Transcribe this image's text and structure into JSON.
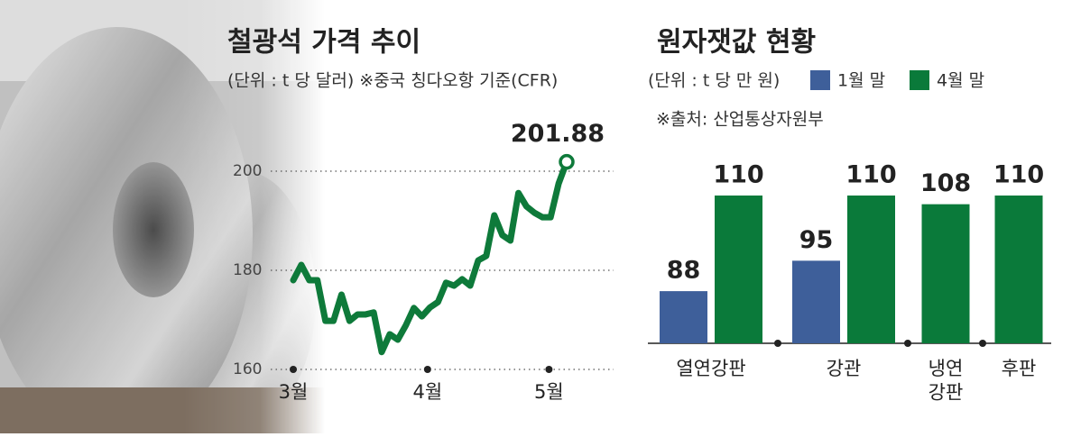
{
  "chart_data": [
    {
      "type": "line",
      "title": "철광석 가격 추이",
      "subtitle": "(단위 : t 당 달러) ※중국 칭다오항 기준(CFR)",
      "series": [
        {
          "name": "철광석",
          "color": "#0e7a3a",
          "values": [
            178,
            181.1,
            178,
            178,
            169.8,
            169.8,
            175.1,
            169.8,
            171.1,
            171.1,
            171.5,
            163.5,
            167.1,
            166,
            168.9,
            172.4,
            170.7,
            172.5,
            173.6,
            177.5,
            176.9,
            178.2,
            176.9,
            182,
            182.9,
            191.1,
            187.1,
            186,
            195.6,
            192.9,
            191.6,
            190.7,
            190.7,
            197.5,
            201.88
          ]
        }
      ],
      "xlim": [
        0,
        34
      ],
      "xticks": [
        {
          "value": 0,
          "label": "3월"
        },
        {
          "value": 16.7,
          "label": "4월"
        },
        {
          "value": 31.8,
          "label": "5월"
        }
      ],
      "ylim": [
        160,
        205
      ],
      "yticks": [
        160,
        180,
        200
      ],
      "grid": true
    },
    {
      "type": "bar",
      "title": "원자잿값 현황",
      "subtitle": "(단위 : t 당 만 원)",
      "source": "※출처: 산업통상자원부",
      "categories": [
        "열연강판",
        "강관",
        "냉연\n강판",
        "후판"
      ],
      "series": [
        {
          "name": "1월 말",
          "color": "#3e5f9a",
          "values": [
            88,
            95,
            null,
            null
          ]
        },
        {
          "name": "4월 말",
          "color": "#0a7a3a",
          "values": [
            110,
            110,
            108,
            110
          ]
        }
      ],
      "ylim": [
        76,
        111.5
      ],
      "legend": "top"
    }
  ]
}
